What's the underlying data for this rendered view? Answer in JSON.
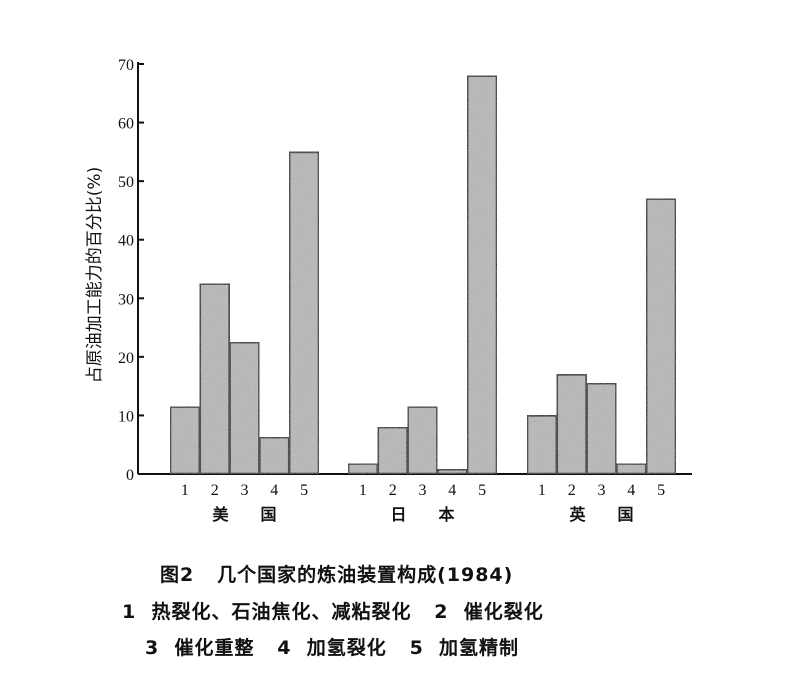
{
  "chart_data": {
    "type": "bar",
    "ylabel": "占原油加工能力的百分比(%)",
    "ylim": [
      0,
      70
    ],
    "yticks": [
      0,
      10,
      20,
      30,
      40,
      50,
      60,
      70
    ],
    "categories": [
      "1",
      "2",
      "3",
      "4",
      "5"
    ],
    "groups": [
      {
        "name": "美  国",
        "values": [
          11.5,
          32.5,
          22.5,
          6.3,
          55
        ]
      },
      {
        "name": "日  本",
        "values": [
          1.8,
          8,
          11.5,
          0.8,
          68
        ]
      },
      {
        "name": "英  国",
        "values": [
          10,
          17,
          15.5,
          1.8,
          47
        ]
      }
    ],
    "grid": false,
    "bar_color": "#b8b8b8",
    "edge_color": "#111111"
  },
  "caption": {
    "title": "图2   几个国家的炼油装置构成(1984)",
    "legend_line1": "1  热裂化、石油焦化、减粘裂化   2  催化裂化",
    "legend_line2": "3  催化重整   4  加氢裂化   5  加氢精制"
  }
}
